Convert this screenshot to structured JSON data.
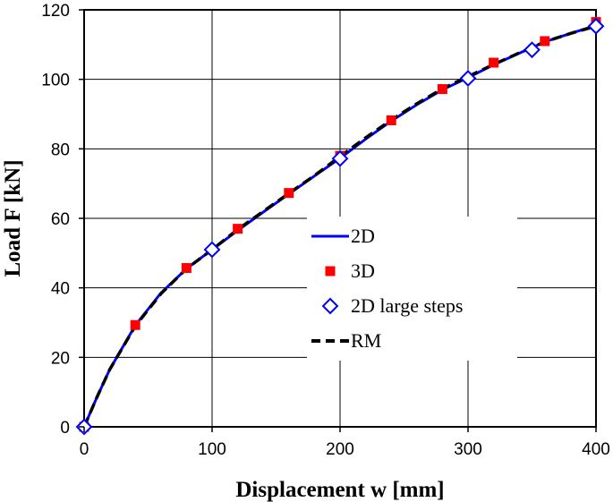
{
  "chart_data": {
    "type": "line",
    "title": "",
    "xlabel": "Displacement w  [mm]",
    "ylabel": "Load  F  [kN]",
    "xlim": [
      0,
      400
    ],
    "ylim": [
      0,
      120
    ],
    "x_ticks": [
      0,
      100,
      200,
      300,
      400
    ],
    "y_ticks": [
      0,
      20,
      40,
      60,
      80,
      100,
      120
    ],
    "grid": true,
    "legend_position": "center-right",
    "series": [
      {
        "name": "2D",
        "style": "solid-line",
        "color": "#0000ff",
        "x": [
          0,
          10,
          20,
          40,
          60,
          80,
          100,
          120,
          140,
          160,
          180,
          200,
          220,
          240,
          260,
          280,
          300,
          320,
          340,
          360,
          380,
          400
        ],
        "y": [
          0,
          8.5,
          16.5,
          29.2,
          38.5,
          45.5,
          51,
          56.5,
          61.8,
          67,
          72.2,
          77.3,
          82.8,
          88,
          92.7,
          97,
          100.5,
          104.2,
          107.5,
          110.8,
          113.2,
          115.5
        ]
      },
      {
        "name": "3D",
        "style": "filled-square",
        "color": "#ff0000",
        "x": [
          0,
          40,
          80,
          120,
          160,
          200,
          240,
          280,
          320,
          360,
          400
        ],
        "y": [
          0,
          29.3,
          45.7,
          57,
          67.3,
          78,
          88.2,
          97.2,
          104.8,
          111,
          116.5
        ]
      },
      {
        "name": "2D  large steps",
        "style": "open-diamond",
        "color": "#0000ff",
        "x": [
          0,
          100,
          200,
          300,
          350,
          400
        ],
        "y": [
          0,
          51,
          77.2,
          100.3,
          108.5,
          115.3
        ]
      },
      {
        "name": "RM",
        "style": "dashed-line",
        "color": "#000000",
        "x": [
          0,
          10,
          20,
          40,
          60,
          80,
          100,
          120,
          140,
          160,
          180,
          200,
          220,
          240,
          260,
          280,
          300,
          320,
          340,
          360,
          380,
          400
        ],
        "y": [
          0,
          8.5,
          16.5,
          29,
          38.3,
          45.5,
          51,
          56.8,
          62,
          67.2,
          72.3,
          77.8,
          83.2,
          88.3,
          93,
          97.3,
          100.8,
          104.3,
          107.6,
          110.8,
          113.2,
          115.3
        ]
      }
    ]
  }
}
